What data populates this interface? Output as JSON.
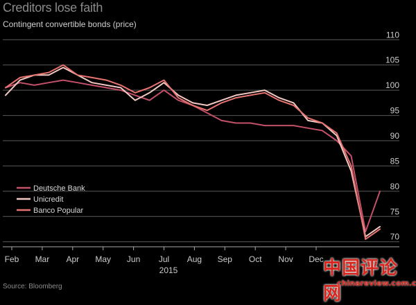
{
  "title": "Creditors lose faith",
  "subtitle": "Contingent convertible bonds (price)",
  "source": "Source: Bloomberg",
  "watermark": {
    "chars": "中国评论网",
    "url": "chinareview.com.cn"
  },
  "colors": {
    "background": "#000000",
    "grid": "#5a5a5a",
    "deutsche_bank": "#c4506a",
    "unicredit": "#f3c9c3",
    "banco_popular": "#e77470"
  },
  "chart_data": {
    "type": "line",
    "title": "Creditors lose faith",
    "subtitle": "Contingent convertible bonds (price)",
    "xlabel": "",
    "ylabel": "",
    "x_ticks": [
      "Feb",
      "Mar",
      "Apr",
      "May",
      "Jun",
      "Jul",
      "Aug",
      "Sep",
      "Oct",
      "Nov",
      "Dec"
    ],
    "x_year": "2015",
    "x": [
      "Feb 1",
      "Feb 15",
      "Mar 1",
      "Mar 15",
      "Apr 1",
      "Apr 15",
      "May 1",
      "May 15",
      "Jun 1",
      "Jun 15",
      "Jul 1",
      "Jul 15",
      "Aug 1",
      "Aug 15",
      "Sep 1",
      "Sep 15",
      "Oct 1",
      "Oct 15",
      "Nov 1",
      "Nov 15",
      "Dec 1",
      "Dec 15",
      "Jan 1",
      "Jan 15",
      "Feb 1",
      "Feb 10",
      "Feb 15"
    ],
    "y_ticks": [
      70,
      75,
      80,
      85,
      90,
      95,
      100,
      105,
      110
    ],
    "ylim": [
      69,
      111
    ],
    "grid": true,
    "legend_position": "left",
    "series": [
      {
        "name": "Deutsche Bank",
        "values": [
          100.5,
          101.5,
          101.0,
          101.5,
          102.0,
          101.5,
          101.0,
          100.5,
          100.0,
          99.0,
          98.0,
          100.0,
          98.0,
          97.0,
          95.5,
          94.0,
          93.5,
          93.5,
          93.0,
          93.0,
          93.0,
          92.5,
          92.0,
          90.0,
          87.0,
          72.0,
          80.0
        ]
      },
      {
        "name": "Unicredit",
        "values": [
          99.0,
          102.0,
          103.0,
          103.0,
          104.5,
          103.0,
          101.5,
          101.0,
          100.5,
          98.0,
          99.5,
          101.5,
          99.0,
          97.5,
          97.0,
          98.0,
          99.0,
          99.5,
          100.0,
          98.5,
          97.5,
          94.0,
          93.5,
          91.0,
          84.0,
          71.0,
          73.0
        ]
      },
      {
        "name": "Banco Popular",
        "values": [
          100.5,
          102.5,
          103.0,
          103.5,
          105.0,
          103.0,
          102.5,
          102.0,
          101.0,
          99.5,
          100.5,
          102.0,
          98.5,
          97.0,
          96.0,
          97.5,
          98.5,
          99.0,
          99.5,
          98.0,
          97.0,
          94.5,
          93.5,
          91.5,
          85.0,
          70.5,
          72.5
        ]
      }
    ]
  }
}
